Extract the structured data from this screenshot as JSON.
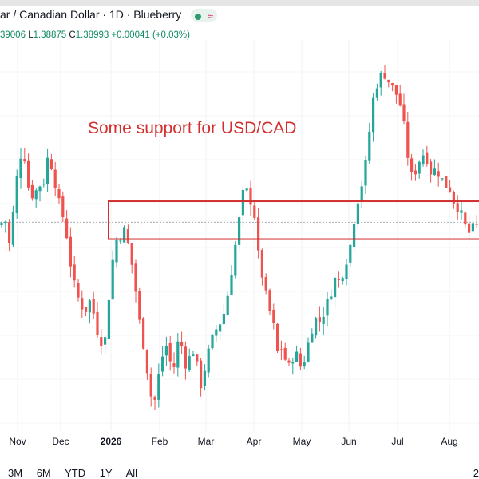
{
  "header": {
    "title": "ar / Canadian Dollar · 1D · Blueberry",
    "ohlc_open": "39006",
    "ohlc_low_label": "L",
    "ohlc_low": "1.38875",
    "ohlc_close_label": "C",
    "ohlc_close": "1.38993",
    "ohlc_change": "+0.00041 (+0.03%)"
  },
  "range_buttons": [
    "3M",
    "6M",
    "YTD",
    "1Y",
    "All"
  ],
  "corner_text": "2",
  "colors": {
    "up": "#26a69a",
    "down": "#ef5350",
    "annotation": "#d32f2f",
    "status_dot": "#2e9a6f"
  },
  "chart_data": {
    "type": "candlestick",
    "annotation": "Some support for USD/CAD",
    "x_tick_labels": [
      "Nov",
      "Dec",
      "2026",
      "Feb",
      "Mar",
      "Apr",
      "May",
      "Jun",
      "Jul",
      "Aug"
    ],
    "close_path": [
      [
        0,
        1.3895
      ],
      [
        0.01,
        1.3905
      ],
      [
        0.02,
        1.387
      ],
      [
        0.03,
        1.3925
      ],
      [
        0.04,
        1.398
      ],
      [
        0.05,
        1.3985
      ],
      [
        0.06,
        1.394
      ],
      [
        0.07,
        1.393
      ],
      [
        0.08,
        1.3945
      ],
      [
        0.09,
        1.3945
      ],
      [
        0.1,
        1.398
      ],
      [
        0.11,
        1.3965
      ],
      [
        0.12,
        1.393
      ],
      [
        0.13,
        1.391
      ],
      [
        0.14,
        1.388
      ],
      [
        0.15,
        1.3835
      ],
      [
        0.16,
        1.381
      ],
      [
        0.17,
        1.3795
      ],
      [
        0.18,
        1.379
      ],
      [
        0.19,
        1.3805
      ],
      [
        0.2,
        1.377
      ],
      [
        0.21,
        1.375
      ],
      [
        0.22,
        1.3755
      ],
      [
        0.23,
        1.3825
      ],
      [
        0.24,
        1.3875
      ],
      [
        0.25,
        1.388
      ],
      [
        0.26,
        1.389
      ],
      [
        0.27,
        1.3865
      ],
      [
        0.28,
        1.383
      ],
      [
        0.29,
        1.378
      ],
      [
        0.3,
        1.3745
      ],
      [
        0.31,
        1.3705
      ],
      [
        0.32,
        1.3665
      ],
      [
        0.33,
        1.3705
      ],
      [
        0.34,
        1.3735
      ],
      [
        0.35,
        1.375
      ],
      [
        0.36,
        1.3705
      ],
      [
        0.37,
        1.375
      ],
      [
        0.38,
        1.3745
      ],
      [
        0.39,
        1.3715
      ],
      [
        0.4,
        1.3745
      ],
      [
        0.41,
        1.3725
      ],
      [
        0.42,
        1.3695
      ],
      [
        0.43,
        1.3725
      ],
      [
        0.44,
        1.375
      ],
      [
        0.45,
        1.3765
      ],
      [
        0.46,
        1.3775
      ],
      [
        0.47,
        1.379
      ],
      [
        0.48,
        1.3825
      ],
      [
        0.49,
        1.3865
      ],
      [
        0.5,
        1.3905
      ],
      [
        0.51,
        1.3945
      ],
      [
        0.52,
        1.393
      ],
      [
        0.53,
        1.3915
      ],
      [
        0.54,
        1.3855
      ],
      [
        0.55,
        1.3825
      ],
      [
        0.56,
        1.3795
      ],
      [
        0.57,
        1.3775
      ],
      [
        0.58,
        1.3735
      ],
      [
        0.59,
        1.3745
      ],
      [
        0.6,
        1.3715
      ],
      [
        0.61,
        1.373
      ],
      [
        0.62,
        1.3735
      ],
      [
        0.63,
        1.3715
      ],
      [
        0.64,
        1.374
      ],
      [
        0.65,
        1.3765
      ],
      [
        0.66,
        1.378
      ],
      [
        0.67,
        1.3775
      ],
      [
        0.68,
        1.3795
      ],
      [
        0.69,
        1.381
      ],
      [
        0.7,
        1.383
      ],
      [
        0.71,
        1.3825
      ],
      [
        0.72,
        1.3845
      ],
      [
        0.73,
        1.3865
      ],
      [
        0.74,
        1.3905
      ],
      [
        0.75,
        1.3935
      ],
      [
        0.76,
        1.3955
      ],
      [
        0.77,
        1.4005
      ],
      [
        0.78,
        1.4055
      ],
      [
        0.79,
        1.4075
      ],
      [
        0.8,
        1.4085
      ],
      [
        0.81,
        1.4075
      ],
      [
        0.82,
        1.4065
      ],
      [
        0.83,
        1.4055
      ],
      [
        0.84,
        1.4035
      ],
      [
        0.85,
        1.3985
      ],
      [
        0.86,
        1.3955
      ],
      [
        0.87,
        1.3965
      ],
      [
        0.88,
        1.3985
      ],
      [
        0.89,
        1.398
      ],
      [
        0.9,
        1.396
      ],
      [
        0.91,
        1.3965
      ],
      [
        0.92,
        1.3955
      ],
      [
        0.93,
        1.3945
      ],
      [
        0.94,
        1.394
      ],
      [
        0.95,
        1.392
      ],
      [
        0.96,
        1.3915
      ],
      [
        0.97,
        1.3895
      ],
      [
        0.98,
        1.3885
      ],
      [
        0.99,
        1.3895
      ],
      [
        1.0,
        1.3893
      ]
    ],
    "y_range": [
      1.364,
      1.412
    ],
    "support_zone": [
      1.3878,
      1.3925
    ],
    "reference_line": 1.3899,
    "grid": true,
    "date_labels_shown": true
  }
}
